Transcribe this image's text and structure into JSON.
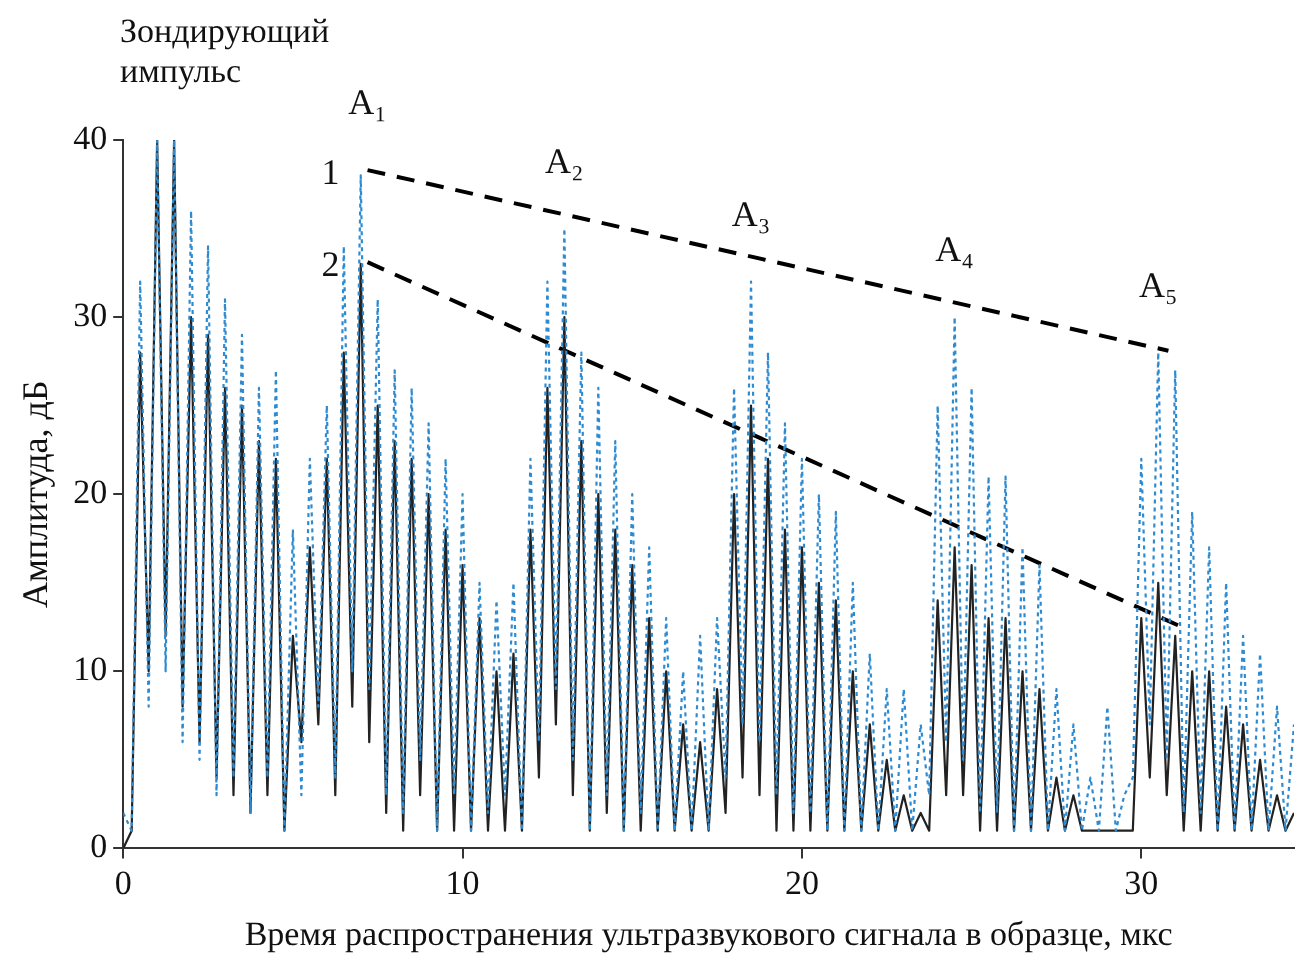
{
  "chart_data": {
    "type": "line",
    "xlabel": "Время распространения ультразвукового сигнала в образце, мкс",
    "ylabel": "Амплитуда, дБ",
    "xlim": [
      0,
      34.5
    ],
    "xticks": [
      0,
      10,
      20,
      30
    ],
    "ylim": [
      0,
      40
    ],
    "yticks": [
      0,
      10,
      20,
      30,
      40
    ],
    "grid": false,
    "legend": false,
    "marker": "none",
    "x": [
      0,
      0.25,
      0.5,
      0.75,
      1,
      1.25,
      1.5,
      1.75,
      2,
      2.25,
      2.5,
      2.75,
      3,
      3.25,
      3.5,
      3.75,
      4,
      4.25,
      4.5,
      4.75,
      5,
      5.25,
      5.5,
      5.75,
      6,
      6.25,
      6.5,
      6.75,
      7,
      7.25,
      7.5,
      7.75,
      8,
      8.25,
      8.5,
      8.75,
      9,
      9.25,
      9.5,
      9.75,
      10,
      10.25,
      10.5,
      10.75,
      11,
      11.25,
      11.5,
      11.75,
      12,
      12.25,
      12.5,
      12.75,
      13,
      13.25,
      13.5,
      13.75,
      14,
      14.25,
      14.5,
      14.75,
      15,
      15.25,
      15.5,
      15.75,
      16,
      16.25,
      16.5,
      16.75,
      17,
      17.25,
      17.5,
      17.75,
      18,
      18.25,
      18.5,
      18.75,
      19,
      19.25,
      19.5,
      19.75,
      20,
      20.25,
      20.5,
      20.75,
      21,
      21.25,
      21.5,
      21.75,
      22,
      22.25,
      22.5,
      22.75,
      23,
      23.25,
      23.5,
      23.75,
      24,
      24.25,
      24.5,
      24.75,
      25,
      25.25,
      25.5,
      25.75,
      26,
      26.25,
      26.5,
      26.75,
      27,
      27.25,
      27.5,
      27.75,
      28,
      28.25,
      28.5,
      28.75,
      29,
      29.25,
      29.5,
      29.75,
      30,
      30.25,
      30.5,
      30.75,
      31,
      31.25,
      31.5,
      31.75,
      32,
      32.25,
      32.5,
      32.75,
      33,
      33.25,
      33.5,
      33.75,
      34,
      34.25,
      34.5
    ],
    "series": [
      {
        "color": "#2e8bd0",
        "line_style": "dotted",
        "values": [
          2,
          1,
          32,
          8,
          40,
          10,
          40,
          6,
          36,
          5,
          34,
          3,
          31,
          4,
          29,
          2,
          26,
          4,
          27,
          1,
          18,
          3,
          22,
          8,
          25,
          4,
          34,
          10,
          38,
          9,
          31,
          3,
          27,
          2,
          26,
          5,
          24,
          1,
          22,
          3,
          20,
          1,
          15,
          2,
          14,
          3,
          15,
          1,
          22,
          6,
          32,
          9,
          35,
          5,
          28,
          1,
          26,
          3,
          23,
          1,
          20,
          2,
          17,
          1,
          13,
          1,
          10,
          1,
          12,
          1,
          13,
          4,
          26,
          7,
          32,
          6,
          28,
          3,
          24,
          2,
          22,
          2,
          20,
          1,
          19,
          1,
          15,
          1,
          11,
          1,
          9,
          1,
          9,
          1,
          7,
          3,
          25,
          6,
          30,
          5,
          26,
          2,
          21,
          2,
          21,
          1,
          17,
          1,
          16,
          1,
          9,
          1,
          7,
          1,
          4,
          1,
          8,
          1,
          3,
          4,
          22,
          7,
          28,
          5,
          27,
          2,
          19,
          2,
          17,
          1,
          15,
          1,
          12,
          1,
          11,
          1,
          8,
          1,
          7
        ]
      },
      {
        "color": "#222222",
        "line_style": "solid",
        "values": [
          0,
          1,
          28,
          10,
          40,
          12,
          40,
          8,
          30,
          6,
          29,
          4,
          26,
          3,
          25,
          2,
          23,
          3,
          22,
          1,
          12,
          6,
          17,
          7,
          22,
          3,
          28,
          8,
          33,
          6,
          25,
          2,
          23,
          1,
          22,
          3,
          20,
          1,
          18,
          1,
          16,
          1,
          13,
          1,
          10,
          1,
          11,
          1,
          18,
          4,
          26,
          7,
          30,
          3,
          23,
          1,
          20,
          2,
          18,
          1,
          16,
          1,
          13,
          1,
          10,
          1,
          7,
          1,
          6,
          1,
          9,
          2,
          20,
          4,
          25,
          3,
          22,
          1,
          18,
          1,
          17,
          1,
          15,
          1,
          14,
          1,
          10,
          1,
          7,
          1,
          5,
          1,
          3,
          1,
          2,
          1,
          14,
          3,
          17,
          3,
          16,
          1,
          13,
          1,
          13,
          1,
          10,
          1,
          9,
          1,
          4,
          1,
          3,
          1,
          1,
          1,
          1,
          1,
          1,
          1,
          13,
          4,
          15,
          3,
          12,
          1,
          10,
          1,
          10,
          1,
          8,
          1,
          7,
          1,
          5,
          1,
          3,
          1,
          2
        ]
      },
      {
        "name": "1",
        "type": "line",
        "color": "#000000",
        "line_style": "dashed",
        "x": [
          7.2,
          30.8
        ],
        "values": [
          38.3,
          28.1
        ]
      },
      {
        "name": "2",
        "type": "line",
        "color": "#000000",
        "line_style": "dashed",
        "x": [
          7.2,
          31.2
        ],
        "values": [
          33.1,
          12.5
        ]
      }
    ],
    "annotations": [
      "Зондирующий импульс",
      {
        "text": "A₁",
        "x": 7.2,
        "y": 38.3
      },
      {
        "text": "A₂",
        "x": 13,
        "y": 35
      },
      {
        "text": "A₃",
        "x": 18.5,
        "y": 32
      },
      {
        "text": "A₄",
        "x": 24.5,
        "y": 30
      },
      {
        "text": "A₅",
        "x": 30.5,
        "y": 28
      }
    ]
  }
}
